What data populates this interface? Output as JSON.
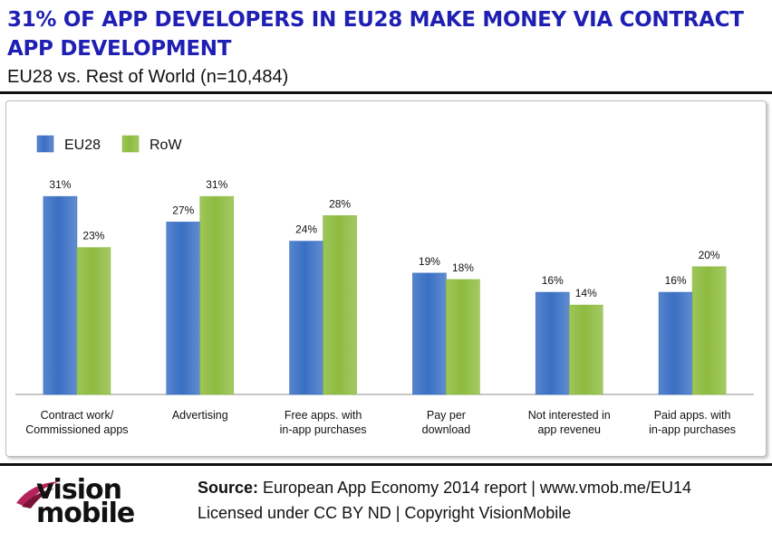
{
  "header": {
    "title": "31% OF APP DEVELOPERS IN EU28 MAKE MONEY VIA CONTRACT APP DEVELOPMENT",
    "subtitle": "EU28 vs. Rest of World (n=10,484)"
  },
  "chart_data": {
    "type": "bar",
    "categories": [
      "Contract work/\nCommissioned apps",
      "Advertising",
      "Free apps. with\nin-app purchases",
      "Pay per\ndownload",
      "Not interested in\napp reveneu",
      "Paid apps. with\nin-app purchases"
    ],
    "series": [
      {
        "name": "EU28",
        "values": [
          31,
          27,
          24,
          19,
          16,
          16
        ],
        "color": "#3a6fc4"
      },
      {
        "name": "RoW",
        "values": [
          23,
          31,
          28,
          18,
          14,
          20
        ],
        "color": "#8dbb3e"
      }
    ],
    "value_suffix": "%",
    "ylim": [
      0,
      34
    ],
    "grid": false,
    "legend": "top-left"
  },
  "footer": {
    "source_label": "Source:",
    "source_text": " European App Economy 2014 report | www.vmob.me/EU14",
    "license": "Licensed under CC BY ND | Copyright VisionMobile",
    "logo_line1": "vision",
    "logo_line2": "mobile"
  }
}
